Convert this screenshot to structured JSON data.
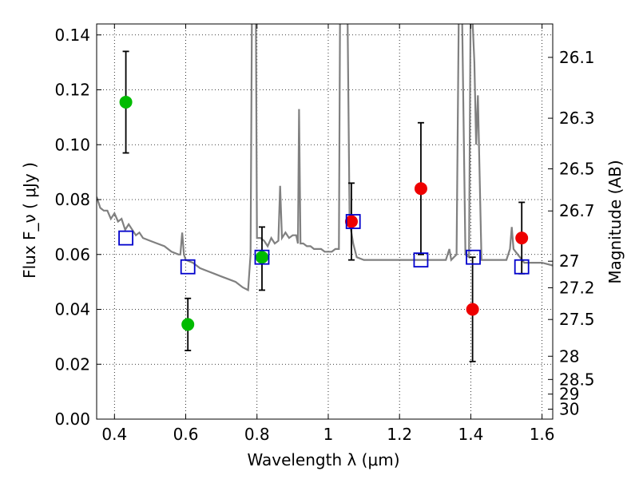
{
  "chart_data": {
    "type": "scatter",
    "xlabel": "Wavelength  λ (μm)",
    "ylabel": "Flux  F_ν  ( μJy )",
    "ylabel2": "Magnitude (AB)",
    "xlim": [
      0.35,
      1.63
    ],
    "ylim": [
      0.0,
      0.144
    ],
    "x_ticks": [
      0.4,
      0.6,
      0.8,
      1.0,
      1.2,
      1.4,
      1.6
    ],
    "x_tick_labels": [
      "0.4",
      "0.6",
      "0.8",
      "1",
      "1.2",
      "1.4",
      "1.6"
    ],
    "y_ticks": [
      0.0,
      0.02,
      0.04,
      0.06,
      0.08,
      0.1,
      0.12,
      0.14
    ],
    "y_tick_labels": [
      "0.00",
      "0.02",
      "0.04",
      "0.06",
      "0.08",
      "0.10",
      "0.12",
      "0.14"
    ],
    "mag_ticks": [
      26.1,
      26.3,
      26.5,
      26.7,
      27,
      27.2,
      27.5,
      28,
      28.5,
      29,
      30
    ],
    "mag_tick_labels": [
      "26.1",
      "26.3",
      "26.5",
      "26.7",
      "27",
      "27.2",
      "27.5",
      "28",
      "28.5",
      "29",
      "30"
    ],
    "grid": true,
    "colors": {
      "green": "#00bb00",
      "red": "#ee0000",
      "blue": "#0000cc",
      "model": "#808080"
    },
    "series": [
      {
        "marker": "circle",
        "color": "green",
        "points": [
          {
            "x": 0.432,
            "y": 0.1155,
            "ylow": 0.097,
            "yhigh": 0.134
          },
          {
            "x": 0.606,
            "y": 0.0345,
            "ylow": 0.025,
            "yhigh": 0.044
          },
          {
            "x": 0.814,
            "y": 0.059,
            "ylow": 0.047,
            "yhigh": 0.07
          }
        ]
      },
      {
        "marker": "circle",
        "color": "red",
        "points": [
          {
            "x": 1.065,
            "y": 0.072,
            "ylow": 0.058,
            "yhigh": 0.086
          },
          {
            "x": 1.26,
            "y": 0.084,
            "ylow": 0.06,
            "yhigh": 0.108
          },
          {
            "x": 1.405,
            "y": 0.04,
            "ylow": 0.021,
            "yhigh": 0.059
          },
          {
            "x": 1.543,
            "y": 0.066,
            "ylow": 0.053,
            "yhigh": 0.079
          }
        ]
      },
      {
        "marker": "open-square",
        "color": "blue",
        "points": [
          {
            "x": 0.432,
            "y": 0.066
          },
          {
            "x": 0.606,
            "y": 0.0555
          },
          {
            "x": 0.814,
            "y": 0.059
          },
          {
            "x": 1.07,
            "y": 0.072
          },
          {
            "x": 1.26,
            "y": 0.058
          },
          {
            "x": 1.407,
            "y": 0.059
          },
          {
            "x": 1.543,
            "y": 0.0555
          }
        ]
      }
    ],
    "model_spectrum": [
      [
        0.35,
        0.081
      ],
      [
        0.36,
        0.077
      ],
      [
        0.37,
        0.076
      ],
      [
        0.38,
        0.076
      ],
      [
        0.39,
        0.073
      ],
      [
        0.4,
        0.075
      ],
      [
        0.41,
        0.072
      ],
      [
        0.42,
        0.073
      ],
      [
        0.43,
        0.069
      ],
      [
        0.44,
        0.071
      ],
      [
        0.45,
        0.069
      ],
      [
        0.46,
        0.067
      ],
      [
        0.47,
        0.068
      ],
      [
        0.48,
        0.066
      ],
      [
        0.5,
        0.065
      ],
      [
        0.52,
        0.064
      ],
      [
        0.54,
        0.063
      ],
      [
        0.56,
        0.061
      ],
      [
        0.58,
        0.06
      ],
      [
        0.585,
        0.06
      ],
      [
        0.59,
        0.068
      ],
      [
        0.595,
        0.06
      ],
      [
        0.6,
        0.058
      ],
      [
        0.62,
        0.057
      ],
      [
        0.64,
        0.055
      ],
      [
        0.66,
        0.054
      ],
      [
        0.68,
        0.053
      ],
      [
        0.7,
        0.052
      ],
      [
        0.72,
        0.051
      ],
      [
        0.74,
        0.05
      ],
      [
        0.76,
        0.048
      ],
      [
        0.775,
        0.047
      ],
      [
        0.782,
        0.06
      ],
      [
        0.788,
        0.2
      ],
      [
        0.795,
        0.2
      ],
      [
        0.8,
        0.066
      ],
      [
        0.81,
        0.066
      ],
      [
        0.82,
        0.065
      ],
      [
        0.83,
        0.063
      ],
      [
        0.84,
        0.066
      ],
      [
        0.85,
        0.064
      ],
      [
        0.86,
        0.065
      ],
      [
        0.865,
        0.085
      ],
      [
        0.87,
        0.066
      ],
      [
        0.88,
        0.068
      ],
      [
        0.89,
        0.066
      ],
      [
        0.9,
        0.067
      ],
      [
        0.91,
        0.067
      ],
      [
        0.915,
        0.064
      ],
      [
        0.918,
        0.113
      ],
      [
        0.922,
        0.064
      ],
      [
        0.93,
        0.064
      ],
      [
        0.94,
        0.063
      ],
      [
        0.95,
        0.063
      ],
      [
        0.96,
        0.062
      ],
      [
        0.97,
        0.062
      ],
      [
        0.98,
        0.062
      ],
      [
        0.99,
        0.061
      ],
      [
        1.0,
        0.061
      ],
      [
        1.01,
        0.061
      ],
      [
        1.02,
        0.062
      ],
      [
        1.03,
        0.062
      ],
      [
        1.035,
        0.2
      ],
      [
        1.05,
        0.2
      ],
      [
        1.06,
        0.072
      ],
      [
        1.07,
        0.064
      ],
      [
        1.08,
        0.059
      ],
      [
        1.1,
        0.058
      ],
      [
        1.15,
        0.058
      ],
      [
        1.2,
        0.058
      ],
      [
        1.25,
        0.058
      ],
      [
        1.3,
        0.058
      ],
      [
        1.33,
        0.058
      ],
      [
        1.34,
        0.062
      ],
      [
        1.345,
        0.058
      ],
      [
        1.36,
        0.06
      ],
      [
        1.37,
        0.2
      ],
      [
        1.385,
        0.06
      ],
      [
        1.395,
        0.059
      ],
      [
        1.4,
        0.16
      ],
      [
        1.41,
        0.13
      ],
      [
        1.415,
        0.1
      ],
      [
        1.42,
        0.118
      ],
      [
        1.43,
        0.058
      ],
      [
        1.45,
        0.058
      ],
      [
        1.5,
        0.058
      ],
      [
        1.51,
        0.062
      ],
      [
        1.515,
        0.07
      ],
      [
        1.52,
        0.062
      ],
      [
        1.55,
        0.057
      ],
      [
        1.6,
        0.057
      ],
      [
        1.63,
        0.056
      ]
    ]
  }
}
